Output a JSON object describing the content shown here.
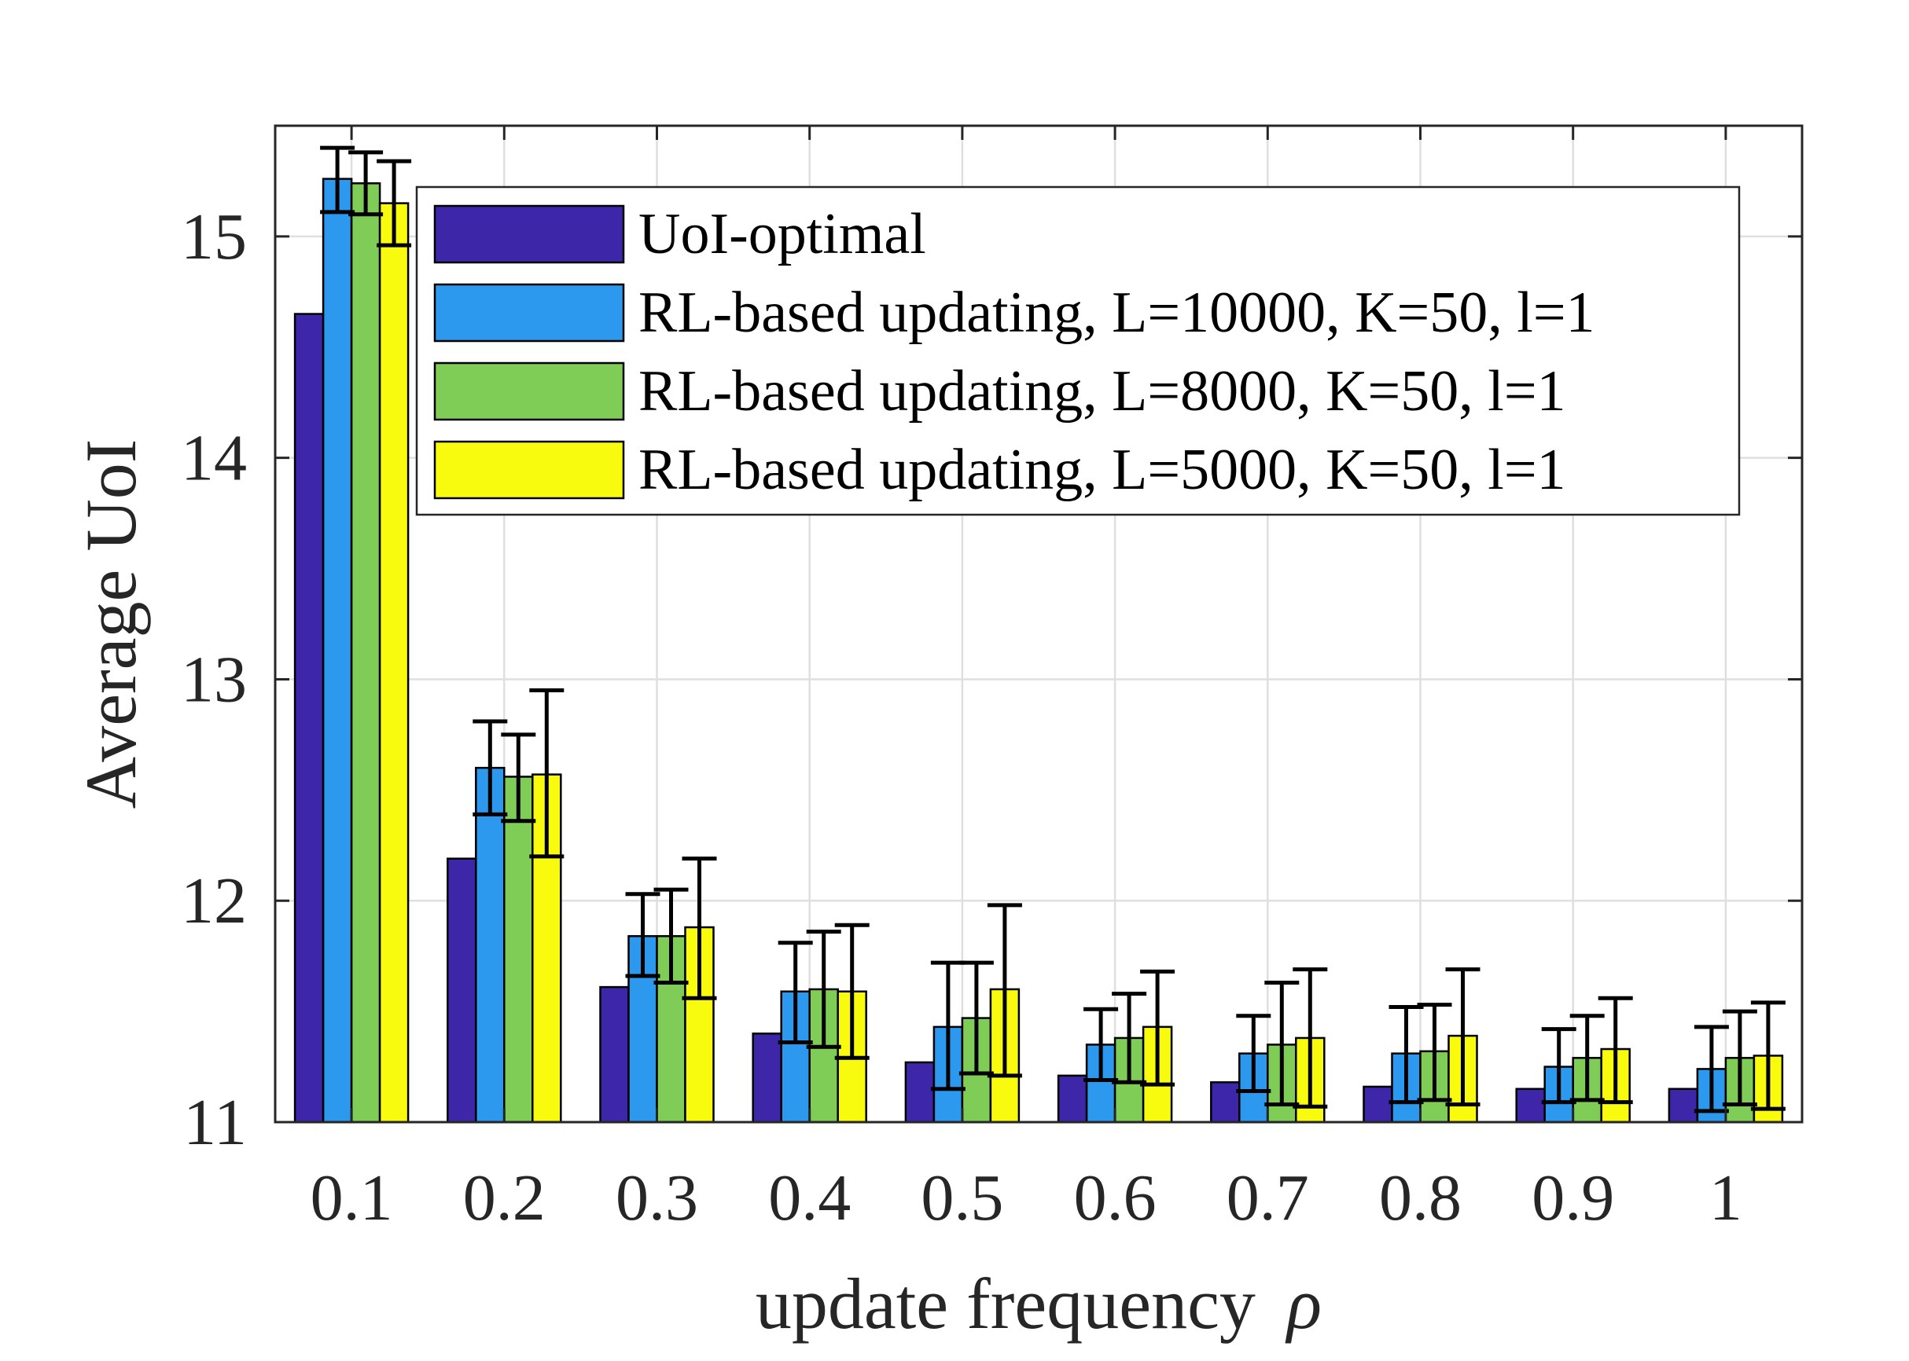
{
  "chart_data": {
    "type": "bar",
    "xlabel": "update frequency",
    "xlabel_symbol": "ρ",
    "ylabel": "Average UoI",
    "ylim": [
      11,
      15.5
    ],
    "yticks": [
      "11",
      "12",
      "13",
      "14",
      "15"
    ],
    "categories": [
      "0.1",
      "0.2",
      "0.3",
      "0.4",
      "0.5",
      "0.6",
      "0.7",
      "0.8",
      "0.9",
      "1"
    ],
    "grid": true,
    "legend_position": "top-right",
    "series": [
      {
        "name": "UoI-optimal",
        "color": "#3e26a8",
        "values": [
          14.65,
          12.19,
          11.61,
          11.4,
          11.27,
          11.21,
          11.18,
          11.16,
          11.15,
          11.15
        ]
      },
      {
        "name": "RL-based updating, L=10000, K=50, l=1",
        "color": "#2c98ee",
        "values": [
          15.26,
          12.6,
          11.84,
          11.59,
          11.43,
          11.35,
          11.31,
          11.31,
          11.25,
          11.24
        ],
        "err_low": [
          15.11,
          12.39,
          11.66,
          11.36,
          11.15,
          11.19,
          11.14,
          11.09,
          11.09,
          11.05
        ],
        "err_high": [
          15.4,
          12.81,
          12.03,
          11.81,
          11.72,
          11.51,
          11.48,
          11.52,
          11.42,
          11.43
        ]
      },
      {
        "name": "RL-based updating, L=8000, K=50, l=1",
        "color": "#7fcc56",
        "values": [
          15.24,
          12.56,
          11.84,
          11.6,
          11.47,
          11.38,
          11.35,
          11.32,
          11.29,
          11.29
        ],
        "err_low": [
          15.1,
          12.36,
          11.63,
          11.34,
          11.22,
          11.18,
          11.08,
          11.1,
          11.1,
          11.08
        ],
        "err_high": [
          15.38,
          12.75,
          12.05,
          11.86,
          11.72,
          11.58,
          11.63,
          11.53,
          11.48,
          11.5
        ]
      },
      {
        "name": "RL-based updating, L=5000, K=50, l=1",
        "color": "#f9fb0e",
        "values": [
          15.15,
          12.57,
          11.88,
          11.59,
          11.6,
          11.43,
          11.38,
          11.39,
          11.33,
          11.3
        ],
        "err_low": [
          14.96,
          12.2,
          11.56,
          11.29,
          11.21,
          11.17,
          11.07,
          11.08,
          11.09,
          11.06
        ],
        "err_high": [
          15.34,
          12.95,
          12.19,
          11.89,
          11.98,
          11.68,
          11.69,
          11.69,
          11.56,
          11.54
        ]
      }
    ]
  }
}
